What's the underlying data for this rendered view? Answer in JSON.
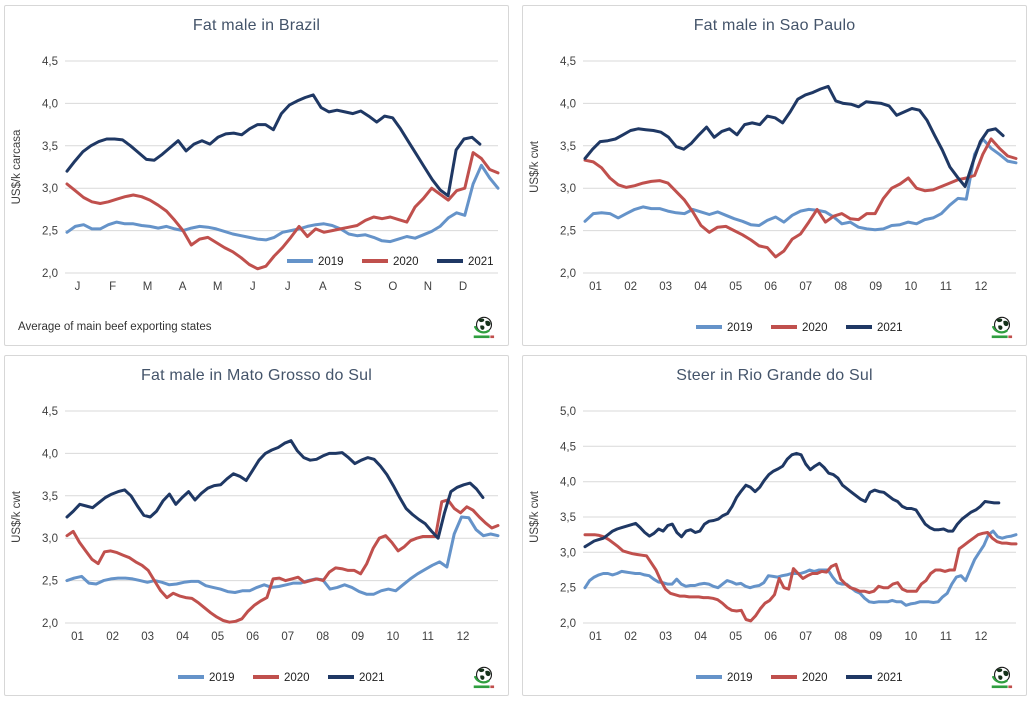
{
  "page": {
    "background": "#ffffff",
    "panel_border": "#d7d7d7"
  },
  "colors": {
    "blue": "#6593C9",
    "red": "#C0504D",
    "navy": "#1F3864",
    "gridline": "#D9D9D9",
    "tick_text": "#404040",
    "title_text": "#44546A",
    "legend_text": "#1F1F1F"
  },
  "logo": {
    "icon": "globe-icon",
    "swoosh_green": "#2F9E3F",
    "wordmark_red": "#C0504D"
  },
  "chart_data": [
    {
      "type": "line",
      "title": "Fat male in Brazil",
      "ylabel": "US$/k carcasa",
      "ylim": [
        2.0,
        4.5
      ],
      "ytick_step": 0.5,
      "grid": "horizontal",
      "legend_position": "inside-bottom-right",
      "footnote": "Average of main beef exporting states",
      "x_tick_labels": [
        "J",
        "F",
        "M",
        "A",
        "M",
        "J",
        "J",
        "A",
        "S",
        "O",
        "N",
        "D"
      ],
      "series": [
        {
          "name": "2019",
          "color_key": "blue",
          "x_end": 1,
          "values": [
            2.48,
            2.55,
            2.57,
            2.52,
            2.52,
            2.57,
            2.6,
            2.58,
            2.58,
            2.56,
            2.55,
            2.53,
            2.55,
            2.52,
            2.5,
            2.53,
            2.55,
            2.54,
            2.52,
            2.49,
            2.46,
            2.44,
            2.42,
            2.4,
            2.39,
            2.42,
            2.48,
            2.5,
            2.52,
            2.55,
            2.57,
            2.58,
            2.56,
            2.52,
            2.46,
            2.44,
            2.45,
            2.42,
            2.38,
            2.37,
            2.4,
            2.43,
            2.41,
            2.45,
            2.49,
            2.55,
            2.65,
            2.71,
            2.68,
            3.05,
            3.27,
            3.12,
            3.0
          ]
        },
        {
          "name": "2020",
          "color_key": "red",
          "x_end": 1,
          "values": [
            3.05,
            2.97,
            2.89,
            2.84,
            2.82,
            2.84,
            2.87,
            2.9,
            2.92,
            2.9,
            2.86,
            2.8,
            2.73,
            2.62,
            2.5,
            2.33,
            2.4,
            2.42,
            2.36,
            2.3,
            2.25,
            2.18,
            2.1,
            2.05,
            2.08,
            2.2,
            2.3,
            2.42,
            2.55,
            2.43,
            2.52,
            2.48,
            2.5,
            2.52,
            2.54,
            2.56,
            2.62,
            2.66,
            2.64,
            2.66,
            2.63,
            2.6,
            2.78,
            2.88,
            3.0,
            2.93,
            2.86,
            2.97,
            3.0,
            3.42,
            3.35,
            3.22,
            3.18
          ]
        },
        {
          "name": "2021",
          "color_key": "navy",
          "x_end": 0.958,
          "values": [
            3.2,
            3.32,
            3.43,
            3.5,
            3.55,
            3.58,
            3.58,
            3.57,
            3.5,
            3.42,
            3.34,
            3.33,
            3.4,
            3.48,
            3.56,
            3.44,
            3.52,
            3.56,
            3.52,
            3.6,
            3.64,
            3.65,
            3.63,
            3.7,
            3.75,
            3.75,
            3.69,
            3.88,
            3.98,
            4.03,
            4.07,
            4.1,
            3.95,
            3.9,
            3.92,
            3.9,
            3.88,
            3.91,
            3.85,
            3.78,
            3.85,
            3.83,
            3.7,
            3.55,
            3.4,
            3.25,
            3.1,
            2.98,
            2.91,
            3.45,
            3.58,
            3.6,
            3.52
          ]
        }
      ]
    },
    {
      "type": "line",
      "title": "Fat male in Sao Paulo",
      "ylabel": "US$/k cwt",
      "ylim": [
        2.0,
        4.5
      ],
      "ytick_step": 0.5,
      "grid": "horizontal",
      "legend_position": "below-center",
      "footnote": "",
      "x_tick_labels": [
        "01",
        "02",
        "03",
        "04",
        "05",
        "06",
        "07",
        "08",
        "09",
        "10",
        "11",
        "12"
      ],
      "series": [
        {
          "name": "2019",
          "color_key": "blue",
          "x_end": 1,
          "values": [
            2.61,
            2.7,
            2.71,
            2.7,
            2.65,
            2.7,
            2.75,
            2.78,
            2.76,
            2.76,
            2.73,
            2.71,
            2.7,
            2.75,
            2.72,
            2.69,
            2.72,
            2.68,
            2.64,
            2.61,
            2.57,
            2.56,
            2.62,
            2.66,
            2.6,
            2.68,
            2.73,
            2.75,
            2.74,
            2.72,
            2.66,
            2.58,
            2.6,
            2.54,
            2.52,
            2.51,
            2.52,
            2.56,
            2.57,
            2.6,
            2.58,
            2.63,
            2.65,
            2.7,
            2.8,
            2.88,
            2.87,
            3.4,
            3.58,
            3.47,
            3.4,
            3.32,
            3.3
          ]
        },
        {
          "name": "2020",
          "color_key": "red",
          "x_end": 1,
          "values": [
            3.33,
            3.31,
            3.24,
            3.12,
            3.04,
            3.01,
            3.03,
            3.06,
            3.08,
            3.09,
            3.06,
            2.96,
            2.86,
            2.72,
            2.56,
            2.48,
            2.54,
            2.55,
            2.5,
            2.45,
            2.39,
            2.32,
            2.3,
            2.19,
            2.26,
            2.4,
            2.46,
            2.6,
            2.75,
            2.6,
            2.67,
            2.7,
            2.64,
            2.63,
            2.7,
            2.7,
            2.88,
            3.0,
            3.05,
            3.12,
            3.0,
            2.97,
            2.98,
            3.02,
            3.06,
            3.1,
            3.12,
            3.15,
            3.4,
            3.58,
            3.47,
            3.38,
            3.35
          ]
        },
        {
          "name": "2021",
          "color_key": "navy",
          "x_end": 0.97,
          "values": [
            3.35,
            3.46,
            3.55,
            3.56,
            3.58,
            3.63,
            3.68,
            3.7,
            3.69,
            3.68,
            3.66,
            3.6,
            3.49,
            3.46,
            3.53,
            3.63,
            3.72,
            3.6,
            3.67,
            3.7,
            3.63,
            3.75,
            3.77,
            3.75,
            3.85,
            3.83,
            3.77,
            3.9,
            4.05,
            4.1,
            4.13,
            4.17,
            4.2,
            4.03,
            4.0,
            3.99,
            3.96,
            4.02,
            4.01,
            4.0,
            3.97,
            3.86,
            3.9,
            3.94,
            3.92,
            3.8,
            3.62,
            3.45,
            3.25,
            3.13,
            3.02,
            3.3,
            3.55,
            3.68,
            3.7,
            3.62
          ]
        }
      ]
    },
    {
      "type": "line",
      "title": "Fat male in Mato Grosso do Sul",
      "ylabel": "US$/k cwt",
      "ylim": [
        2.0,
        4.5
      ],
      "ytick_step": 0.5,
      "grid": "horizontal",
      "legend_position": "below-center",
      "footnote": "",
      "x_tick_labels": [
        "01",
        "02",
        "03",
        "04",
        "05",
        "06",
        "07",
        "08",
        "09",
        "10",
        "11",
        "12"
      ],
      "series": [
        {
          "name": "2019",
          "color_key": "blue",
          "x_end": 1,
          "values": [
            2.5,
            2.53,
            2.55,
            2.47,
            2.46,
            2.5,
            2.52,
            2.53,
            2.53,
            2.52,
            2.5,
            2.48,
            2.5,
            2.48,
            2.45,
            2.46,
            2.48,
            2.49,
            2.49,
            2.44,
            2.42,
            2.4,
            2.37,
            2.36,
            2.38,
            2.38,
            2.42,
            2.45,
            2.42,
            2.43,
            2.45,
            2.47,
            2.47,
            2.5,
            2.52,
            2.51,
            2.4,
            2.42,
            2.45,
            2.42,
            2.37,
            2.34,
            2.34,
            2.38,
            2.4,
            2.38,
            2.45,
            2.52,
            2.58,
            2.63,
            2.68,
            2.72,
            2.66,
            3.05,
            3.25,
            3.24,
            3.1,
            3.03,
            3.05,
            3.03
          ]
        },
        {
          "name": "2020",
          "color_key": "red",
          "x_end": 1,
          "values": [
            3.03,
            3.08,
            2.95,
            2.85,
            2.75,
            2.7,
            2.84,
            2.85,
            2.83,
            2.8,
            2.77,
            2.72,
            2.68,
            2.62,
            2.5,
            2.38,
            2.3,
            2.35,
            2.32,
            2.3,
            2.29,
            2.24,
            2.18,
            2.12,
            2.07,
            2.03,
            2.01,
            2.02,
            2.05,
            2.14,
            2.21,
            2.26,
            2.3,
            2.52,
            2.53,
            2.5,
            2.52,
            2.54,
            2.48,
            2.5,
            2.52,
            2.5,
            2.6,
            2.65,
            2.64,
            2.62,
            2.62,
            2.58,
            2.7,
            2.88,
            3.0,
            3.03,
            2.95,
            2.85,
            2.9,
            2.97,
            3.0,
            3.02,
            3.02,
            3.02,
            3.43,
            3.45,
            3.35,
            3.3,
            3.37,
            3.33,
            3.25,
            3.18,
            3.12,
            3.15
          ]
        },
        {
          "name": "2021",
          "color_key": "navy",
          "x_end": 0.965,
          "values": [
            3.25,
            3.32,
            3.4,
            3.38,
            3.36,
            3.42,
            3.48,
            3.52,
            3.55,
            3.57,
            3.5,
            3.38,
            3.27,
            3.25,
            3.32,
            3.44,
            3.52,
            3.4,
            3.48,
            3.55,
            3.45,
            3.53,
            3.59,
            3.62,
            3.63,
            3.7,
            3.76,
            3.73,
            3.68,
            3.8,
            3.92,
            4.0,
            4.04,
            4.07,
            4.12,
            4.15,
            4.03,
            3.95,
            3.92,
            3.93,
            3.97,
            4.0,
            4.0,
            4.01,
            3.95,
            3.88,
            3.92,
            3.95,
            3.93,
            3.85,
            3.75,
            3.62,
            3.48,
            3.35,
            3.28,
            3.22,
            3.17,
            3.08,
            3.0,
            3.3,
            3.55,
            3.6,
            3.63,
            3.65,
            3.58,
            3.48
          ]
        }
      ]
    },
    {
      "type": "line",
      "title": "Steer in Rio Grande do Sul",
      "ylabel": "US$/k cwt",
      "ylim": [
        2.0,
        5.0
      ],
      "ytick_step": 0.5,
      "grid": "horizontal",
      "legend_position": "below-center",
      "footnote": "",
      "x_tick_labels": [
        "01",
        "02",
        "03",
        "04",
        "05",
        "06",
        "07",
        "08",
        "09",
        "10",
        "11",
        "12"
      ],
      "series": [
        {
          "name": "2019",
          "color_key": "blue",
          "x_end": 1,
          "values": [
            2.5,
            2.6,
            2.65,
            2.68,
            2.7,
            2.7,
            2.68,
            2.7,
            2.73,
            2.72,
            2.71,
            2.7,
            2.7,
            2.68,
            2.67,
            2.62,
            2.58,
            2.57,
            2.55,
            2.55,
            2.62,
            2.55,
            2.52,
            2.53,
            2.53,
            2.55,
            2.56,
            2.55,
            2.52,
            2.5,
            2.55,
            2.6,
            2.58,
            2.55,
            2.56,
            2.52,
            2.5,
            2.52,
            2.53,
            2.57,
            2.67,
            2.66,
            2.65,
            2.67,
            2.68,
            2.7,
            2.7,
            2.7,
            2.72,
            2.75,
            2.73,
            2.75,
            2.75,
            2.75,
            2.65,
            2.57,
            2.55,
            2.55,
            2.5,
            2.45,
            2.42,
            2.35,
            2.3,
            2.29,
            2.3,
            2.3,
            2.3,
            2.32,
            2.3,
            2.3,
            2.25,
            2.27,
            2.28,
            2.3,
            2.3,
            2.3,
            2.29,
            2.3,
            2.37,
            2.42,
            2.55,
            2.65,
            2.67,
            2.6,
            2.75,
            2.9,
            3.0,
            3.1,
            3.25,
            3.3,
            3.22,
            3.2,
            3.22,
            3.23,
            3.25
          ]
        },
        {
          "name": "2020",
          "color_key": "red",
          "x_end": 1,
          "values": [
            3.25,
            3.25,
            3.25,
            3.24,
            3.22,
            3.18,
            3.13,
            3.08,
            3.02,
            3.0,
            2.98,
            2.97,
            2.96,
            2.95,
            2.85,
            2.75,
            2.6,
            2.48,
            2.42,
            2.4,
            2.38,
            2.38,
            2.37,
            2.37,
            2.37,
            2.36,
            2.36,
            2.35,
            2.33,
            2.28,
            2.22,
            2.18,
            2.17,
            2.18,
            2.05,
            2.03,
            2.1,
            2.2,
            2.28,
            2.32,
            2.4,
            2.63,
            2.5,
            2.48,
            2.77,
            2.7,
            2.63,
            2.67,
            2.7,
            2.7,
            2.73,
            2.72,
            2.8,
            2.83,
            2.62,
            2.55,
            2.5,
            2.48,
            2.45,
            2.45,
            2.43,
            2.45,
            2.52,
            2.5,
            2.5,
            2.55,
            2.57,
            2.48,
            2.45,
            2.45,
            2.45,
            2.55,
            2.6,
            2.7,
            2.75,
            2.75,
            2.73,
            2.75,
            2.75,
            3.05,
            3.1,
            3.15,
            3.2,
            3.25,
            3.27,
            3.28,
            3.2,
            3.15,
            3.13,
            3.13,
            3.12,
            3.12
          ]
        },
        {
          "name": "2021",
          "color_key": "navy",
          "x_end": 0.96,
          "values": [
            3.08,
            3.12,
            3.16,
            3.18,
            3.2,
            3.25,
            3.3,
            3.33,
            3.35,
            3.37,
            3.39,
            3.41,
            3.35,
            3.28,
            3.23,
            3.27,
            3.33,
            3.3,
            3.38,
            3.4,
            3.28,
            3.22,
            3.3,
            3.32,
            3.28,
            3.3,
            3.4,
            3.44,
            3.45,
            3.47,
            3.52,
            3.55,
            3.65,
            3.78,
            3.87,
            3.95,
            3.92,
            3.86,
            3.92,
            4.02,
            4.1,
            4.15,
            4.18,
            4.22,
            4.32,
            4.38,
            4.4,
            4.38,
            4.25,
            4.17,
            4.22,
            4.26,
            4.2,
            4.12,
            4.1,
            4.05,
            3.95,
            3.9,
            3.85,
            3.8,
            3.75,
            3.72,
            3.85,
            3.88,
            3.86,
            3.85,
            3.8,
            3.75,
            3.72,
            3.65,
            3.62,
            3.62,
            3.6,
            3.5,
            3.4,
            3.35,
            3.32,
            3.32,
            3.33,
            3.3,
            3.3,
            3.4,
            3.47,
            3.52,
            3.57,
            3.6,
            3.65,
            3.72,
            3.71,
            3.7,
            3.7
          ]
        }
      ]
    }
  ]
}
